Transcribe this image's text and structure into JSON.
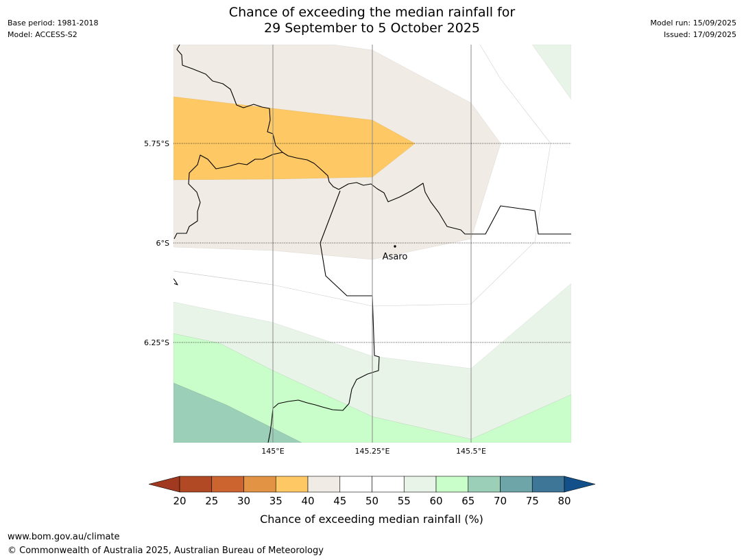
{
  "header": {
    "title_line1": "Chance of exceeding the median rainfall for",
    "title_line2": "29 September to 5 October 2025",
    "base_period": "Base period: 1981-2018",
    "model": "Model: ACCESS-S2",
    "model_run": "Model run: 15/09/2025",
    "issued": "Issued: 17/09/2025"
  },
  "map": {
    "lat_labels": [
      "5.75°S",
      "6°S",
      "6.25°S"
    ],
    "lon_labels": [
      "145°E",
      "145.25°E",
      "145.5°E"
    ],
    "place": "Asaro"
  },
  "colorbar": {
    "label": "Chance of exceeding median rainfall (%)",
    "ticks": [
      "20",
      "25",
      "30",
      "35",
      "40",
      "45",
      "50",
      "55",
      "60",
      "65",
      "70",
      "75",
      "80"
    ],
    "colors": [
      "#a0391f",
      "#b14a24",
      "#cc6430",
      "#e29344",
      "#fec964",
      "#f0ebe4",
      "#ffffff",
      "#ffffff",
      "#e9f4e9",
      "#c9fdc9",
      "#9ccfb8",
      "#6ea5a8",
      "#3e7698",
      "#135089"
    ]
  },
  "footer": {
    "url": "www.bom.gov.au/climate",
    "copyright": "© Commonwealth of Australia 2025, Australian Bureau of Meteorology"
  }
}
